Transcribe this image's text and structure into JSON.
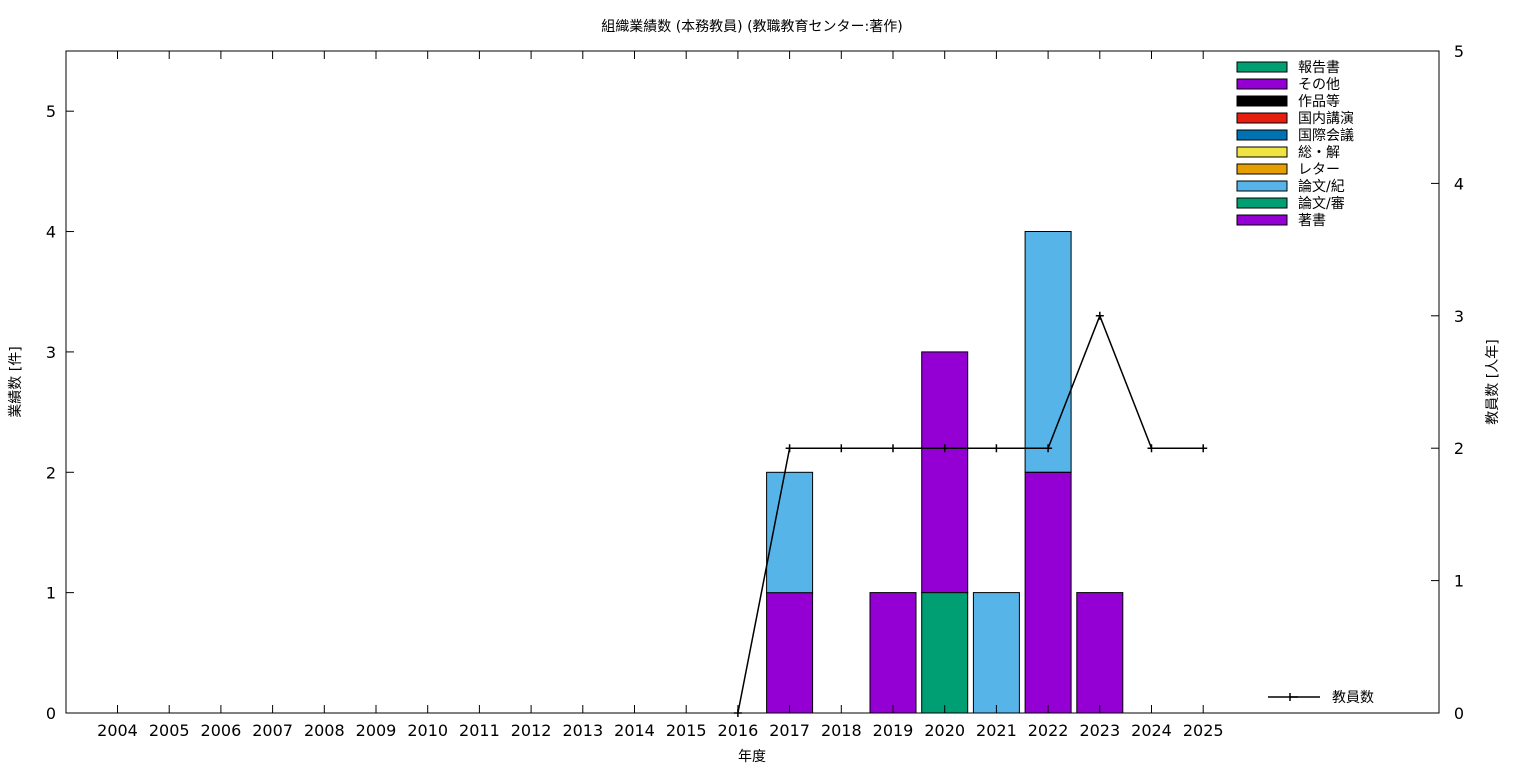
{
  "chart_data": {
    "type": "bar",
    "stacked": true,
    "title": "組織業績数 (本務教員) (教職教育センター:著作)",
    "xlabel": "年度",
    "ylabel": "業績数 [件]",
    "y2label": "教員数 [人年]",
    "ylim": [
      0,
      5.5
    ],
    "y2lim": [
      0,
      5
    ],
    "yticks": [
      0,
      1,
      2,
      3,
      4,
      5
    ],
    "y2ticks": [
      0,
      1,
      2,
      3,
      4,
      5
    ],
    "grid": false,
    "legend_position": "top-right",
    "categories": [
      "2004",
      "2005",
      "2006",
      "2007",
      "2008",
      "2009",
      "2010",
      "2011",
      "2012",
      "2013",
      "2014",
      "2015",
      "2016",
      "2017",
      "2018",
      "2019",
      "2020",
      "2021",
      "2022",
      "2023",
      "2024",
      "2025"
    ],
    "series": [
      {
        "name": "著書",
        "color": "#9400d3",
        "values": [
          0,
          0,
          0,
          0,
          0,
          0,
          0,
          0,
          0,
          0,
          0,
          0,
          0,
          0,
          0,
          0,
          0,
          0,
          0,
          0,
          0,
          0
        ]
      },
      {
        "name": "論文/審",
        "color": "#009e73",
        "values": [
          0,
          0,
          0,
          0,
          0,
          0,
          0,
          0,
          0,
          0,
          0,
          0,
          0,
          0,
          0,
          0,
          1,
          0,
          0,
          0,
          0,
          0
        ]
      },
      {
        "name": "論文/紀",
        "color": "#56b4e9",
        "values": [
          0,
          0,
          0,
          0,
          0,
          0,
          0,
          0,
          0,
          0,
          0,
          0,
          0,
          1,
          0,
          0,
          0,
          1,
          2,
          0,
          0,
          0
        ]
      },
      {
        "name": "レター",
        "color": "#e69f00",
        "values": [
          0,
          0,
          0,
          0,
          0,
          0,
          0,
          0,
          0,
          0,
          0,
          0,
          0,
          0,
          0,
          0,
          0,
          0,
          0,
          0,
          0,
          0
        ]
      },
      {
        "name": "総・解",
        "color": "#f0e442",
        "values": [
          0,
          0,
          0,
          0,
          0,
          0,
          0,
          0,
          0,
          0,
          0,
          0,
          0,
          0,
          0,
          0,
          0,
          0,
          0,
          0,
          0,
          0
        ]
      },
      {
        "name": "国際会議",
        "color": "#0072b2",
        "values": [
          0,
          0,
          0,
          0,
          0,
          0,
          0,
          0,
          0,
          0,
          0,
          0,
          0,
          0,
          0,
          0,
          0,
          0,
          0,
          0,
          0,
          0
        ]
      },
      {
        "name": "国内講演",
        "color": "#e51e10",
        "values": [
          0,
          0,
          0,
          0,
          0,
          0,
          0,
          0,
          0,
          0,
          0,
          0,
          0,
          0,
          0,
          0,
          0,
          0,
          0,
          0,
          0,
          0
        ]
      },
      {
        "name": "作品等",
        "color": "#000000",
        "values": [
          0,
          0,
          0,
          0,
          0,
          0,
          0,
          0,
          0,
          0,
          0,
          0,
          0,
          0,
          0,
          0,
          0,
          0,
          0,
          0,
          0,
          0
        ]
      },
      {
        "name": "その他",
        "color": "#9400d3",
        "values": [
          0,
          0,
          0,
          0,
          0,
          0,
          0,
          0,
          0,
          0,
          0,
          0,
          0,
          1,
          0,
          1,
          2,
          0,
          2,
          1,
          0,
          0
        ]
      },
      {
        "name": "報告書",
        "color": "#009e73",
        "values": [
          0,
          0,
          0,
          0,
          0,
          0,
          0,
          0,
          0,
          0,
          0,
          0,
          0,
          0,
          0,
          0,
          0,
          0,
          0,
          0,
          0,
          0
        ]
      }
    ],
    "stack_order": [
      "論文/審",
      "その他",
      "論文/紀",
      "著書",
      "レター",
      "総・解",
      "国際会議",
      "国内講演",
      "作品等",
      "報告書"
    ],
    "legend_order": [
      "報告書",
      "その他",
      "作品等",
      "国内講演",
      "国際会議",
      "総・解",
      "レター",
      "論文/紀",
      "論文/審",
      "著書"
    ],
    "line": {
      "name": "教員数",
      "axis": "y2",
      "color": "#000000",
      "x": [
        "2016",
        "2017",
        "2018",
        "2019",
        "2020",
        "2021",
        "2022",
        "2023",
        "2024",
        "2025"
      ],
      "values": [
        0,
        2,
        2,
        2,
        2,
        2,
        2,
        3,
        2,
        2
      ]
    }
  }
}
